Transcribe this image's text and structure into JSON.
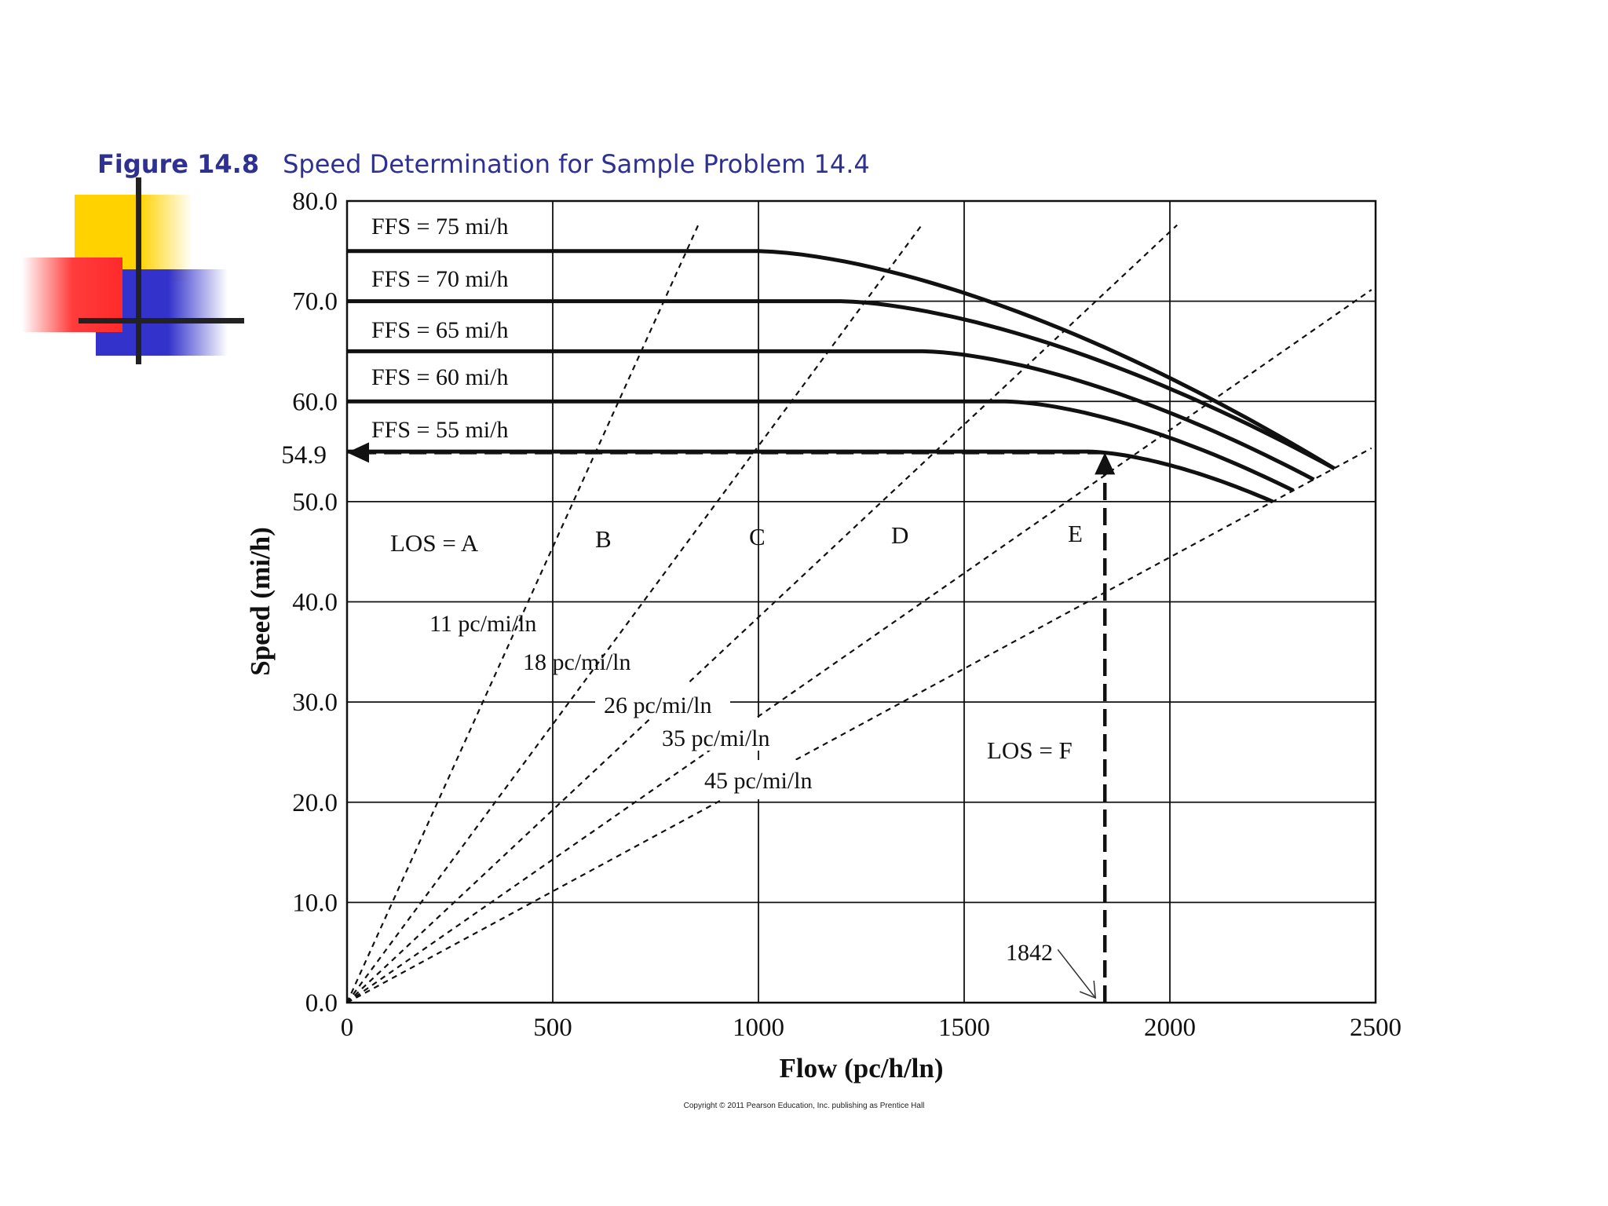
{
  "figure": {
    "number": "Figure 14.8",
    "caption": "Speed Determination for Sample Problem 14.4"
  },
  "copyright": "Copyright © 2011 Pearson Education, Inc. publishing as Prentice Hall",
  "colors": {
    "title": "#2e3192",
    "deco_yellow": "#ffd200",
    "deco_red": "#ff2a2a",
    "deco_blue": "#3333cc",
    "ink": "#111111"
  },
  "chart_data": {
    "type": "line",
    "title": "",
    "xlabel": "Flow (pc/h/ln)",
    "ylabel": "Speed (mi/h)",
    "xlim": [
      0,
      2500
    ],
    "ylim": [
      0,
      80
    ],
    "grid": true,
    "x_ticks": [
      0,
      500,
      1000,
      1500,
      2000,
      2500
    ],
    "x_tick_labels": [
      "0",
      "500",
      "1000",
      "1500",
      "2000",
      "2500"
    ],
    "y_ticks": [
      0,
      10,
      20,
      30,
      40,
      50,
      60,
      70,
      80
    ],
    "y_tick_labels": [
      "0.0",
      "10.0",
      "20.0",
      "30.0",
      "40.0",
      "50.0",
      "60.0",
      "70.0",
      "80.0"
    ],
    "series": [
      {
        "name": "FFS = 75 mi/h",
        "ffs": 75,
        "breakpoint": 1000,
        "capacity_flow": 2400,
        "capacity_speed": 53.3
      },
      {
        "name": "FFS = 70 mi/h",
        "ffs": 70,
        "breakpoint": 1200,
        "capacity_flow": 2400,
        "capacity_speed": 53.3
      },
      {
        "name": "FFS = 65 mi/h",
        "ffs": 65,
        "breakpoint": 1400,
        "capacity_flow": 2350,
        "capacity_speed": 52.2
      },
      {
        "name": "FFS = 60 mi/h",
        "ffs": 60,
        "breakpoint": 1600,
        "capacity_flow": 2300,
        "capacity_speed": 51.1
      },
      {
        "name": "FFS = 55 mi/h",
        "ffs": 55,
        "breakpoint": 1800,
        "capacity_flow": 2250,
        "capacity_speed": 50.0
      }
    ],
    "density_lines": [
      {
        "label": "11 pc/mi/ln",
        "density": 11
      },
      {
        "label": "18 pc/mi/ln",
        "density": 18
      },
      {
        "label": "26 pc/mi/ln",
        "density": 26
      },
      {
        "label": "35 pc/mi/ln",
        "density": 35
      },
      {
        "label": "45 pc/mi/ln",
        "density": 45
      }
    ],
    "los_labels": {
      "A": "LOS = A",
      "B": "B",
      "C": "C",
      "D": "D",
      "E": "E",
      "F": "LOS = F"
    },
    "annotations": {
      "speed_value": "54.9",
      "speed": 54.9,
      "flow_value": "1842",
      "flow": 1842
    }
  }
}
